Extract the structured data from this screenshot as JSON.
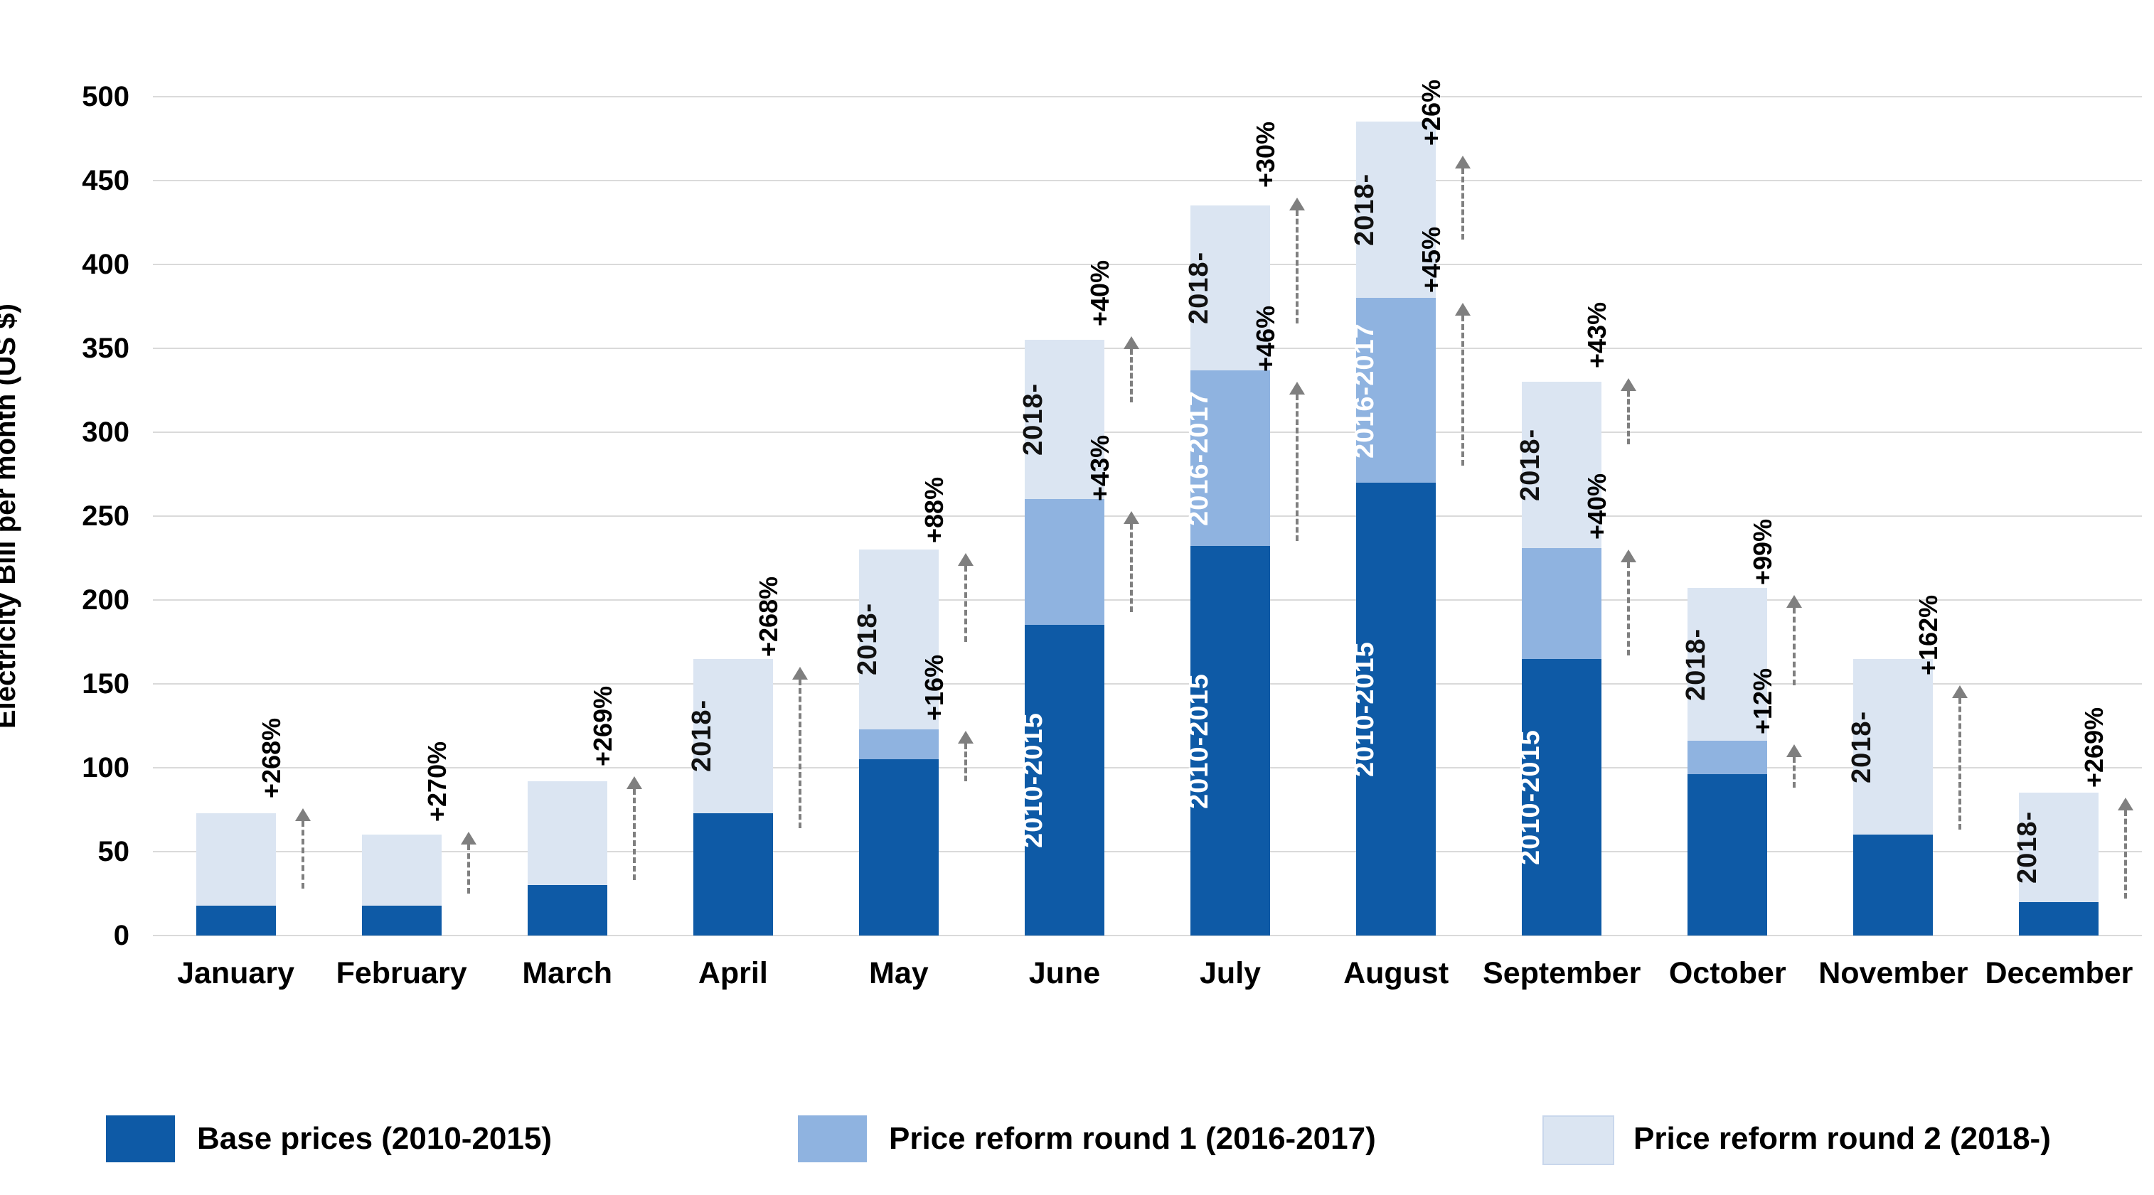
{
  "chart_data": {
    "type": "bar",
    "stacked": true,
    "title": "",
    "xlabel": "",
    "ylabel": "Electricity Bill per month (US $)",
    "ylim": [
      0,
      500
    ],
    "ytick_step": 50,
    "grid": "horizontal",
    "legend_position": "bottom",
    "categories": [
      "January",
      "February",
      "March",
      "April",
      "May",
      "June",
      "July",
      "August",
      "September",
      "October",
      "November",
      "December"
    ],
    "series": [
      {
        "name": "Base prices (2010-2015)",
        "color": "#0e5aa6",
        "label_color": "#ffffff",
        "segment_label": "2010-2015",
        "values": [
          18,
          18,
          30,
          73,
          105,
          185,
          232,
          270,
          165,
          96,
          60,
          20
        ]
      },
      {
        "name": "Price reform round 1 (2016-2017)",
        "color": "#8fb3e0",
        "label_color": "#ffffff",
        "segment_label": "2016-2017",
        "values": [
          0,
          0,
          0,
          0,
          18,
          75,
          105,
          110,
          66,
          20,
          0,
          0
        ]
      },
      {
        "name": "Price reform round 2 (2018-)",
        "color": "#dbe5f2",
        "label_color": "#111111",
        "segment_label": "2018-",
        "values": [
          55,
          42,
          62,
          92,
          107,
          95,
          98,
          105,
          99,
          91,
          105,
          65
        ]
      }
    ],
    "totals": [
      73,
      60,
      92,
      165,
      230,
      355,
      435,
      485,
      330,
      207,
      165,
      85
    ],
    "segment_labels_shown": [
      {
        "series": 0,
        "months": [
          "June",
          "July",
          "August",
          "September"
        ]
      },
      {
        "series": 1,
        "months": [
          "July",
          "August"
        ]
      },
      {
        "series": 2,
        "months": [
          "April",
          "May",
          "June",
          "July",
          "August",
          "September",
          "October",
          "November",
          "December"
        ]
      }
    ],
    "annotations": [
      {
        "month": "January",
        "items": [
          {
            "text": "+268%",
            "from": 28,
            "to": 76
          }
        ]
      },
      {
        "month": "February",
        "items": [
          {
            "text": "+270%",
            "from": 25,
            "to": 62
          }
        ]
      },
      {
        "month": "March",
        "items": [
          {
            "text": "+269%",
            "from": 33,
            "to": 95
          }
        ]
      },
      {
        "month": "April",
        "items": [
          {
            "text": "+268%",
            "from": 64,
            "to": 160
          }
        ]
      },
      {
        "month": "May",
        "items": [
          {
            "text": "+16%",
            "from": 92,
            "to": 122
          },
          {
            "text": "+88%",
            "from": 175,
            "to": 228
          }
        ]
      },
      {
        "month": "June",
        "items": [
          {
            "text": "+43%",
            "from": 193,
            "to": 253
          },
          {
            "text": "+40%",
            "from": 318,
            "to": 357
          }
        ]
      },
      {
        "month": "July",
        "items": [
          {
            "text": "+46%",
            "from": 235,
            "to": 330
          },
          {
            "text": "+30%",
            "from": 365,
            "to": 440
          }
        ]
      },
      {
        "month": "August",
        "items": [
          {
            "text": "+45%",
            "from": 280,
            "to": 377
          },
          {
            "text": "+26%",
            "from": 415,
            "to": 465
          }
        ]
      },
      {
        "month": "September",
        "items": [
          {
            "text": "+40%",
            "from": 167,
            "to": 230
          },
          {
            "text": "+43%",
            "from": 293,
            "to": 332
          }
        ]
      },
      {
        "month": "October",
        "items": [
          {
            "text": "+12%",
            "from": 88,
            "to": 114
          },
          {
            "text": "+99%",
            "from": 149,
            "to": 203
          }
        ]
      },
      {
        "month": "November",
        "items": [
          {
            "text": "+162%",
            "from": 63,
            "to": 149
          }
        ]
      },
      {
        "month": "December",
        "items": [
          {
            "text": "+269%",
            "from": 22,
            "to": 82
          }
        ]
      }
    ]
  },
  "axes": {
    "y_title": "Electricity Bill per month (US $)",
    "y_ticks": [
      "0",
      "50",
      "100",
      "150",
      "200",
      "250",
      "300",
      "350",
      "400",
      "450",
      "500"
    ]
  },
  "legend": {
    "items": [
      {
        "label": "Base prices (2010-2015)",
        "color": "#0e5aa6"
      },
      {
        "label": "Price reform round 1 (2016-2017)",
        "color": "#8fb3e0"
      },
      {
        "label": "Price reform round 2 (2018-)",
        "color": "#dbe5f2"
      }
    ]
  },
  "colors": {
    "grid": "#dadada",
    "arrow": "#7f7f7f",
    "text": "#000000",
    "background": "#ffffff"
  }
}
